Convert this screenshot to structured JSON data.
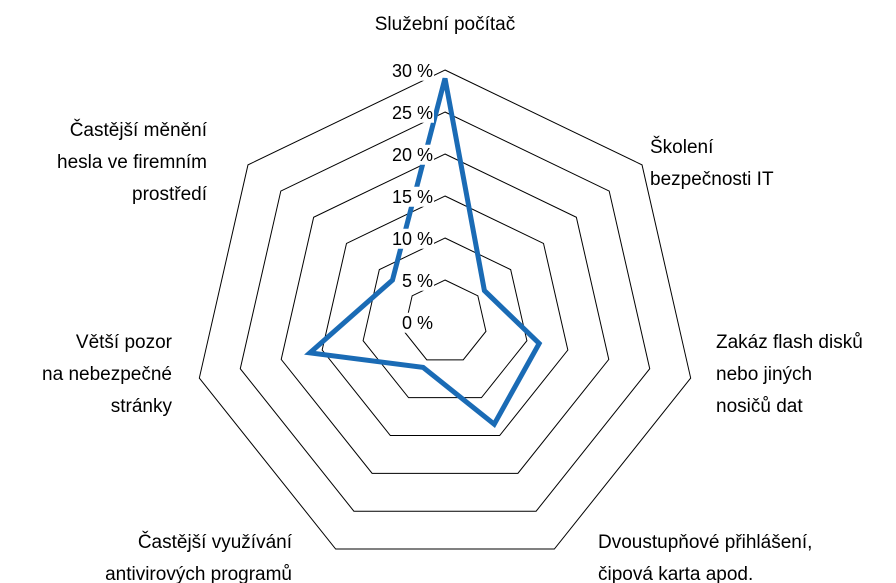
{
  "chart_data": {
    "type": "radar",
    "categories": [
      "Služební počítač",
      "Školení\nbezpečnosti IT",
      "Zakáz flash disků\nnebo jiných\nnosičů dat",
      "Dvoustupňové přihlášení,\nčipová karta apod.",
      "Častější využívání\nantivirových programů",
      "Větší pozor\nna nebezpečné\nstránky",
      "Častější měnění\nhesla ve firemním\nprostředí"
    ],
    "values": [
      29,
      6,
      11.5,
      13.5,
      6,
      16.5,
      8
    ],
    "color": "#1a6bb5",
    "ylim": [
      0,
      30
    ],
    "yticks": [
      {
        "value": 0,
        "label": "0 %"
      },
      {
        "value": 5,
        "label": "5 %"
      },
      {
        "value": 10,
        "label": "10 %"
      },
      {
        "value": 15,
        "label": "15 %"
      },
      {
        "value": 20,
        "label": "20 %"
      },
      {
        "value": 25,
        "label": "25 %"
      },
      {
        "value": 30,
        "label": "30 %"
      }
    ],
    "grid": true
  }
}
